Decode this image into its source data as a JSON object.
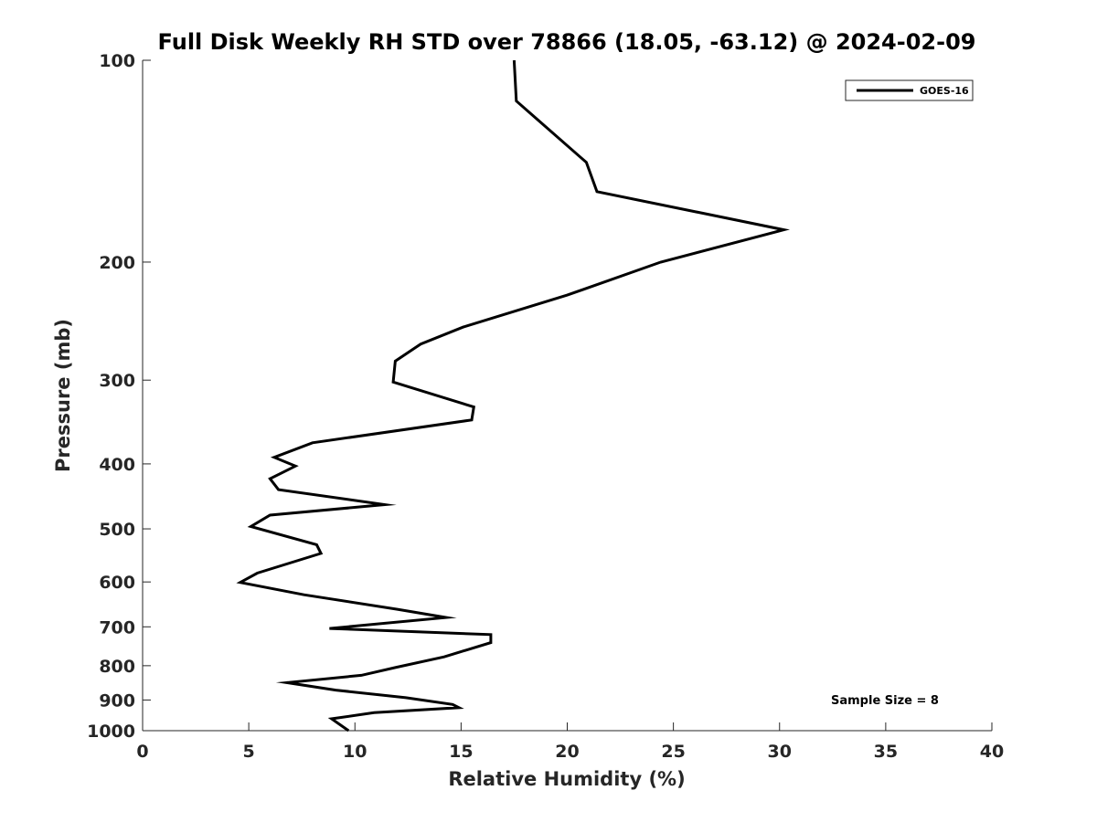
{
  "chart_data": {
    "type": "line",
    "title": "Full Disk Weekly RH STD over 78866 (18.05, -63.12) @ 2024-02-09",
    "xlabel": "Relative Humidity (%)",
    "ylabel": "Pressure (mb)",
    "xlim": [
      0,
      40
    ],
    "ylim": [
      100,
      1000
    ],
    "yscale": "log",
    "yaxis_reversed": true,
    "xticks": [
      "0",
      "5",
      "10",
      "15",
      "20",
      "25",
      "30",
      "35",
      "40"
    ],
    "xtick_values": [
      0,
      5,
      10,
      15,
      20,
      25,
      30,
      35,
      40
    ],
    "yticks": [
      "100",
      "200",
      "300",
      "400",
      "500",
      "600",
      "700",
      "800",
      "900",
      "1000"
    ],
    "ytick_values": [
      100,
      200,
      300,
      400,
      500,
      600,
      700,
      800,
      900,
      1000
    ],
    "grid": false,
    "legend_position": "top-right",
    "series": [
      {
        "name": "GOES-16",
        "color": "#000000",
        "x": [
          17.5,
          17.6,
          20.9,
          21.4,
          30.2,
          24.4,
          20.0,
          15.1,
          13.1,
          11.9,
          11.8,
          15.6,
          15.5,
          8.0,
          6.2,
          7.2,
          6.0,
          6.4,
          11.4,
          6.0,
          5.1,
          8.2,
          8.4,
          5.4,
          4.6,
          7.6,
          12.0,
          14.3,
          8.8,
          16.4,
          16.4,
          14.2,
          11.9,
          10.3,
          6.8,
          9.1,
          12.4,
          14.6,
          14.9,
          10.9,
          8.9,
          9.7
        ],
        "y": [
          100,
          115,
          142,
          157,
          179,
          200,
          224,
          250,
          265,
          281,
          302,
          329,
          344,
          372,
          391,
          403,
          421,
          437,
          460,
          477,
          496,
          528,
          544,
          582,
          601,
          627,
          659,
          678,
          704,
          719,
          739,
          776,
          805,
          827,
          848,
          870,
          893,
          914,
          924,
          940,
          960,
          1000
        ]
      }
    ],
    "annotations": [
      {
        "text": "Sample Size = 8",
        "position": "lower-right"
      }
    ]
  }
}
